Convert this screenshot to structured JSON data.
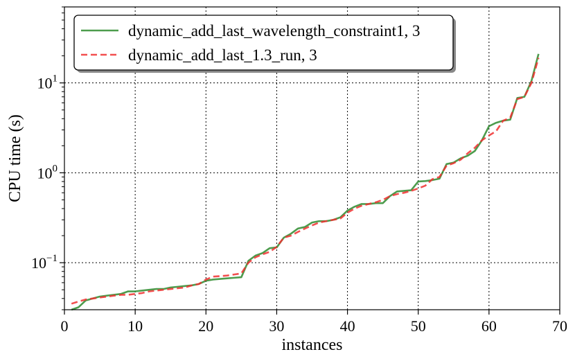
{
  "chart_data": {
    "type": "line",
    "title": "",
    "xlabel": "instances",
    "ylabel": "CPU time (s)",
    "xlim": [
      0,
      70
    ],
    "ylim": [
      0.03,
      70
    ],
    "yscale": "log",
    "grid": true,
    "legend_position": "top-left",
    "x_ticks": [
      0,
      10,
      20,
      30,
      40,
      50,
      60,
      70
    ],
    "x_tick_labels": [
      "0",
      "10",
      "20",
      "30",
      "40",
      "50",
      "60",
      "70"
    ],
    "y_ticks": [
      0.1,
      1,
      10
    ],
    "y_tick_labels": [
      {
        "base": "10",
        "exp": "−1"
      },
      {
        "base": "10",
        "exp": "0"
      },
      {
        "base": "10",
        "exp": "1"
      }
    ],
    "series": [
      {
        "name": "dynamic_add_last_wavelength_constraint1, 3",
        "color": "#2e8b2e",
        "style": "solid",
        "x": [
          1,
          2,
          3,
          4,
          5,
          6,
          7,
          8,
          9,
          10,
          11,
          12,
          13,
          14,
          15,
          16,
          17,
          18,
          19,
          20,
          21,
          22,
          23,
          24,
          25,
          26,
          27,
          28,
          29,
          30,
          31,
          32,
          33,
          34,
          35,
          36,
          37,
          38,
          39,
          40,
          41,
          42,
          43,
          44,
          45,
          46,
          47,
          48,
          49,
          50,
          51,
          52,
          53,
          54,
          55,
          56,
          57,
          58,
          59,
          60,
          61,
          62,
          63,
          64,
          65,
          66,
          67
        ],
        "values": [
          0.03,
          0.032,
          0.038,
          0.04,
          0.042,
          0.043,
          0.044,
          0.045,
          0.048,
          0.048,
          0.049,
          0.05,
          0.051,
          0.051,
          0.053,
          0.054,
          0.055,
          0.056,
          0.058,
          0.063,
          0.065,
          0.066,
          0.067,
          0.068,
          0.069,
          0.105,
          0.12,
          0.128,
          0.145,
          0.148,
          0.19,
          0.21,
          0.24,
          0.25,
          0.28,
          0.29,
          0.29,
          0.3,
          0.32,
          0.38,
          0.42,
          0.45,
          0.45,
          0.46,
          0.46,
          0.55,
          0.62,
          0.63,
          0.64,
          0.8,
          0.81,
          0.83,
          0.86,
          1.25,
          1.3,
          1.45,
          1.55,
          1.75,
          2.3,
          3.3,
          3.6,
          3.8,
          3.9,
          6.8,
          7.0,
          10.5,
          21.0
        ]
      },
      {
        "name": "dynamic_add_last_1.3_run, 3",
        "color": "#f03030",
        "style": "dashed",
        "x": [
          1,
          2,
          3,
          4,
          5,
          6,
          7,
          8,
          9,
          10,
          11,
          12,
          13,
          14,
          15,
          16,
          17,
          18,
          19,
          20,
          21,
          22,
          23,
          24,
          25,
          26,
          27,
          28,
          29,
          30,
          31,
          32,
          33,
          34,
          35,
          36,
          37,
          38,
          39,
          40,
          41,
          42,
          43,
          44,
          45,
          46,
          47,
          48,
          49,
          50,
          51,
          52,
          53,
          54,
          55,
          56,
          57,
          58,
          59,
          60,
          61,
          62,
          63,
          64,
          65,
          66,
          67
        ],
        "values": [
          0.035,
          0.037,
          0.039,
          0.04,
          0.041,
          0.042,
          0.043,
          0.044,
          0.044,
          0.045,
          0.046,
          0.048,
          0.049,
          0.05,
          0.051,
          0.052,
          0.053,
          0.056,
          0.058,
          0.065,
          0.07,
          0.071,
          0.072,
          0.074,
          0.076,
          0.1,
          0.115,
          0.124,
          0.132,
          0.15,
          0.19,
          0.2,
          0.22,
          0.24,
          0.26,
          0.28,
          0.29,
          0.3,
          0.31,
          0.36,
          0.4,
          0.43,
          0.45,
          0.47,
          0.5,
          0.55,
          0.58,
          0.6,
          0.63,
          0.67,
          0.72,
          0.85,
          0.9,
          1.2,
          1.28,
          1.4,
          1.65,
          1.9,
          2.3,
          2.6,
          2.9,
          3.8,
          4.1,
          6.6,
          7.0,
          10.0,
          19.0
        ]
      }
    ]
  }
}
